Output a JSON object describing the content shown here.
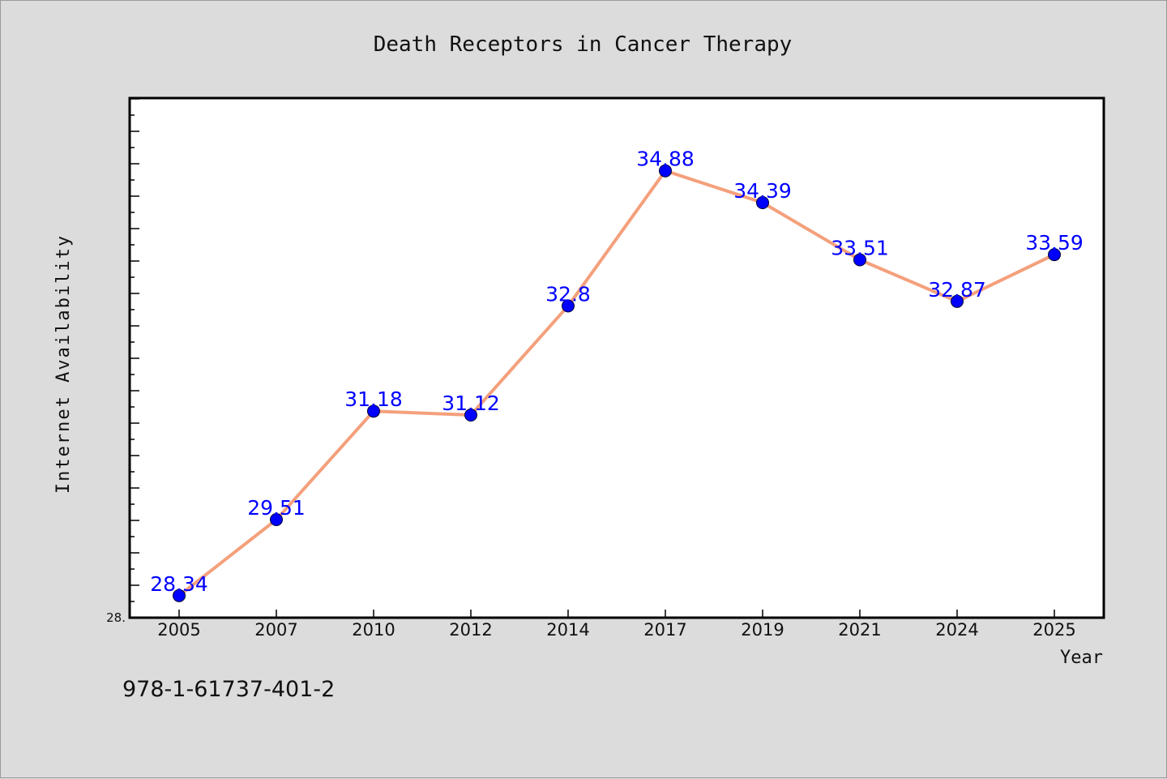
{
  "colors": {
    "background": "#dcdcdc",
    "plot_background": "#ffffff",
    "line": "#f4a07c",
    "marker": "#0000ff",
    "data_label": "#0000ff"
  },
  "footer_code": "978-1-61737-401-2",
  "chart_data": {
    "type": "line",
    "title": "Death Receptors in Cancer Therapy",
    "xlabel": "Year",
    "ylabel": "Internet Availability",
    "categories": [
      "2005",
      "2007",
      "2010",
      "2012",
      "2014",
      "2017",
      "2019",
      "2021",
      "2024",
      "2025"
    ],
    "series": [
      {
        "values": [
          28.34,
          29.51,
          31.18,
          31.12,
          32.8,
          34.88,
          34.39,
          33.51,
          32.87,
          33.59
        ],
        "labels": [
          "28.34",
          "29.51",
          "31.18",
          "31.12",
          "32.8",
          "34.88",
          "34.39",
          "33.51",
          "32.87",
          "33.59"
        ]
      }
    ],
    "ylim": [
      28.0,
      36.0
    ],
    "y_tick_labels": [
      "28."
    ],
    "grid": false,
    "legend": "none"
  }
}
